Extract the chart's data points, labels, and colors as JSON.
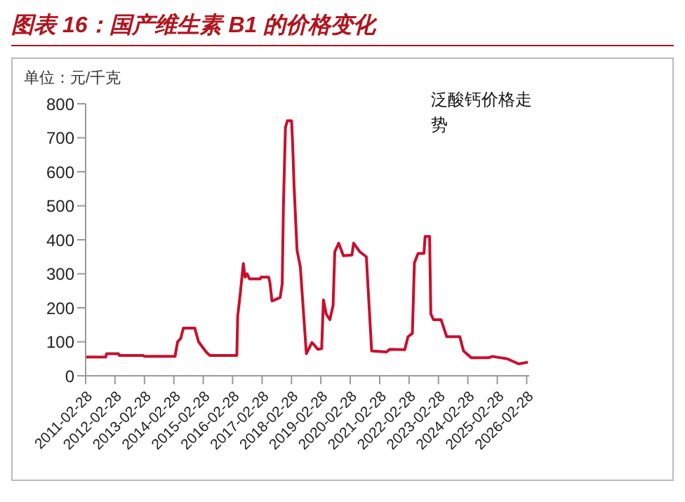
{
  "chart_data": {
    "type": "line",
    "title": "图表 16：国产维生素 B1 的价格变化",
    "ylabel": "单位：元/千克",
    "legend": "top right",
    "grid": false,
    "marker": "none",
    "line_style": "solid",
    "x": [
      "2011-02-28",
      "2011-11-05",
      "2011-11-15",
      "2012-04-10",
      "2012-04-20",
      "2013-02-15",
      "2013-02-25",
      "2014-03-15",
      "2014-04-15",
      "2014-05-25",
      "2014-06-25",
      "2014-11-15",
      "2015-01-01",
      "2015-04-05",
      "2015-05-20",
      "2016-04-20",
      "2016-05-01",
      "2016-06-01",
      "2016-07-10",
      "2016-08-01",
      "2016-08-25",
      "2016-09-25",
      "2017-02-05",
      "2017-02-15",
      "2017-05-20",
      "2017-06-05",
      "2017-07-01",
      "2017-10-10",
      "2017-11-05",
      "2017-11-20",
      "2017-12-15",
      "2018-01-08",
      "2018-03-01",
      "2018-03-15",
      "2018-04-01",
      "2018-05-08",
      "2018-06-18",
      "2018-09-01",
      "2018-11-10",
      "2019-01-22",
      "2019-03-10",
      "2019-04-01",
      "2019-05-05",
      "2019-06-20",
      "2019-07-30",
      "2019-08-20",
      "2019-10-08",
      "2019-12-05",
      "2020-03-20",
      "2020-04-10",
      "2020-06-25",
      "2020-09-15",
      "2020-11-20",
      "2021-05-20",
      "2021-07-05",
      "2022-01-05",
      "2022-02-15",
      "2022-04-10",
      "2022-05-05",
      "2022-06-20",
      "2022-09-01",
      "2022-09-15",
      "2022-11-10",
      "2022-11-25",
      "2022-12-28",
      "2023-04-01",
      "2023-06-10",
      "2023-11-20",
      "2024-01-05",
      "2024-04-10",
      "2024-11-10",
      "2024-12-28",
      "2025-07-01",
      "2025-11-20",
      "2026-03-15"
    ],
    "series": [
      {
        "name": "泛酸钙价格走势",
        "color": "#c8102e",
        "values": [
          55,
          55,
          65,
          65,
          60,
          60,
          57,
          57,
          100,
          110,
          140,
          140,
          100,
          70,
          60,
          60,
          175,
          240,
          330,
          290,
          300,
          285,
          285,
          290,
          290,
          275,
          220,
          230,
          270,
          500,
          730,
          750,
          750,
          680,
          560,
          370,
          320,
          65,
          98,
          78,
          80,
          223,
          182,
          165,
          207,
          365,
          390,
          353,
          355,
          390,
          365,
          350,
          73,
          70,
          78,
          77,
          115,
          125,
          332,
          360,
          360,
          410,
          410,
          182,
          165,
          165,
          115,
          115,
          73,
          53,
          53,
          57,
          50,
          35,
          40
        ]
      }
    ],
    "xlim": [
      "2011-02-28",
      "2026-03-31"
    ],
    "xticks": [
      "2011-02-28",
      "2012-02-28",
      "2013-02-28",
      "2014-02-28",
      "2015-02-28",
      "2016-02-28",
      "2017-02-28",
      "2018-02-28",
      "2019-02-28",
      "2020-02-28",
      "2021-02-28",
      "2022-02-28",
      "2023-02-28",
      "2024-02-28",
      "2025-02-28",
      "2026-02-28"
    ],
    "ylim": [
      0,
      800
    ],
    "yticks": [
      0,
      100,
      200,
      300,
      400,
      500,
      600,
      700,
      800
    ]
  }
}
